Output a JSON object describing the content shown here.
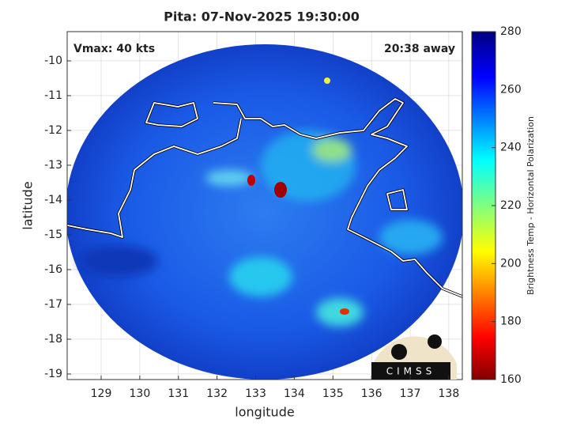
{
  "chart_data": {
    "type": "map",
    "title": "Pita: 07-Nov-2025 19:30:00",
    "annotations": [
      "Vmax: 40 kts",
      "20:38 away"
    ],
    "xlabel": "longitude",
    "ylabel": "latitude",
    "xlim": [
      128.12,
      138.35
    ],
    "ylim": [
      -19.16,
      -9.16
    ],
    "xticks": [
      129,
      130,
      131,
      132,
      133,
      134,
      135,
      136,
      137,
      138
    ],
    "yticks": [
      -10,
      -11,
      -12,
      -13,
      -14,
      -15,
      -16,
      -17,
      -18,
      -19
    ],
    "grid": true,
    "colorbar": {
      "label": "Brightness Temp - Horizontal Polarization",
      "lim": [
        160,
        280
      ],
      "ticks": [
        160,
        180,
        200,
        220,
        240,
        260,
        280
      ]
    },
    "logo": "CIMSS"
  }
}
